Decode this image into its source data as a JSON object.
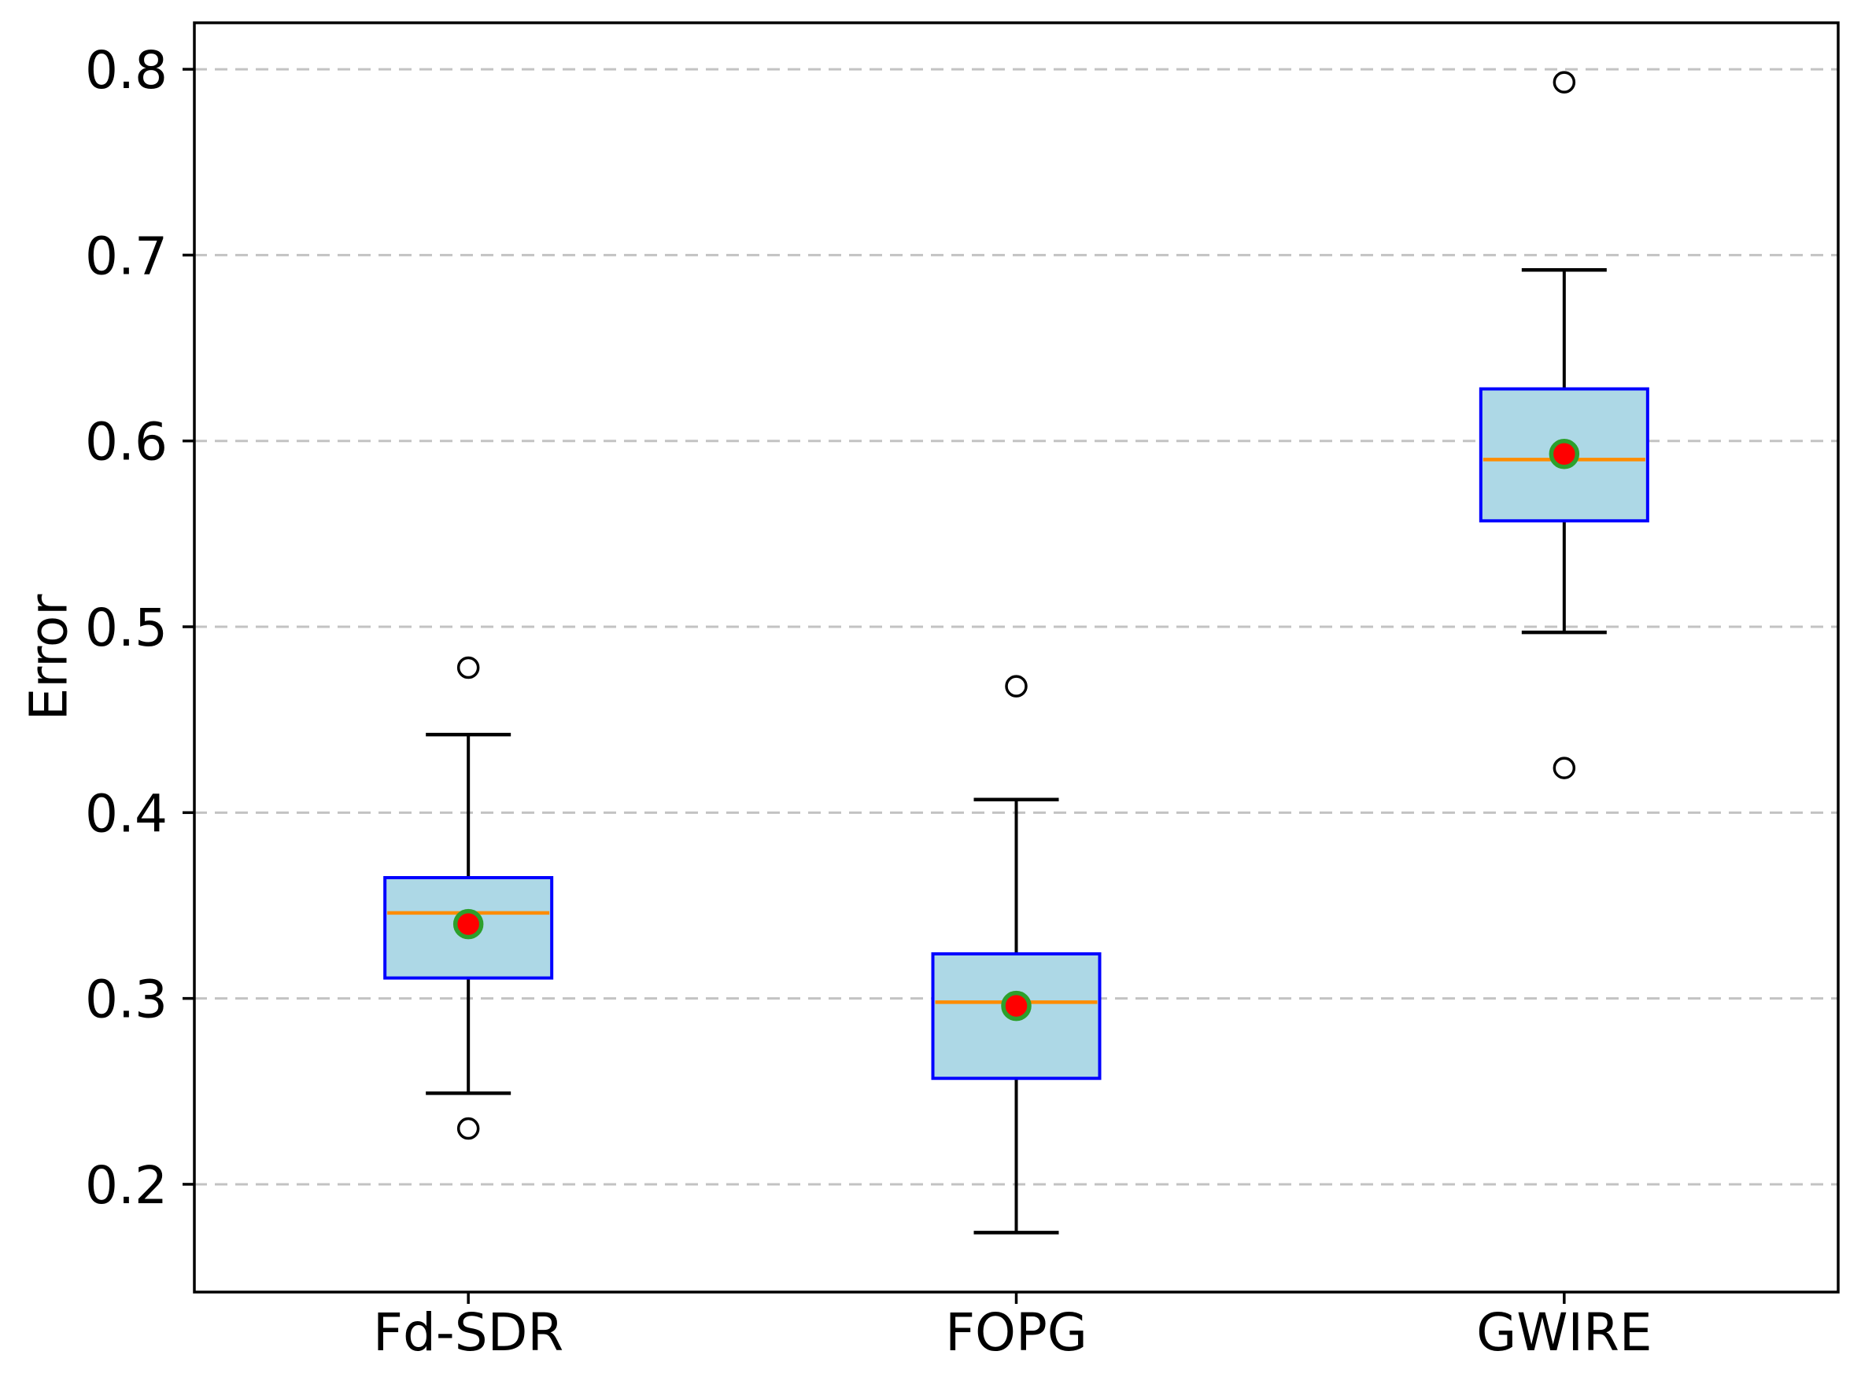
{
  "figure": {
    "background": "#FFFFFF"
  },
  "chart_data": {
    "type": "box",
    "title": "",
    "xlabel": "",
    "ylabel": "Error",
    "categories": [
      "Fd-SDR",
      "FOPG",
      "GWIRE"
    ],
    "ytick_labels": [
      "0.2",
      "0.3",
      "0.4",
      "0.5",
      "0.6",
      "0.7",
      "0.8"
    ],
    "yticks": [
      0.2,
      0.3,
      0.4,
      0.5,
      0.6,
      0.7,
      0.8
    ],
    "ylim": [
      0.142,
      0.825
    ],
    "grid": {
      "axis": "y",
      "style": "dashed",
      "visible": true
    },
    "legend": "none",
    "series": [
      {
        "label": "Fd-SDR",
        "whisker_low": 0.249,
        "q1": 0.311,
        "median": 0.346,
        "q3": 0.365,
        "whisker_high": 0.442,
        "mean": 0.34,
        "outliers": [
          0.478,
          0.23
        ]
      },
      {
        "label": "FOPG",
        "whisker_low": 0.174,
        "q1": 0.257,
        "median": 0.298,
        "q3": 0.324,
        "whisker_high": 0.407,
        "mean": 0.296,
        "outliers": [
          0.468
        ]
      },
      {
        "label": "GWIRE",
        "whisker_low": 0.497,
        "q1": 0.557,
        "median": 0.59,
        "q3": 0.628,
        "whisker_high": 0.692,
        "mean": 0.593,
        "outliers": [
          0.793,
          0.424
        ]
      }
    ],
    "style": {
      "box_fill": "#ADD8E6",
      "box_edge": "#0000FF",
      "median_color": "#FF8C00",
      "mean_fill": "#FF0000",
      "mean_edge": "#2CA02C",
      "whisker_color": "#000000",
      "cap_color": "#000000",
      "outlier_color": "#000000",
      "grid_color": "#C3C3C3",
      "axis_color": "#000000",
      "text_color": "#000000"
    }
  }
}
